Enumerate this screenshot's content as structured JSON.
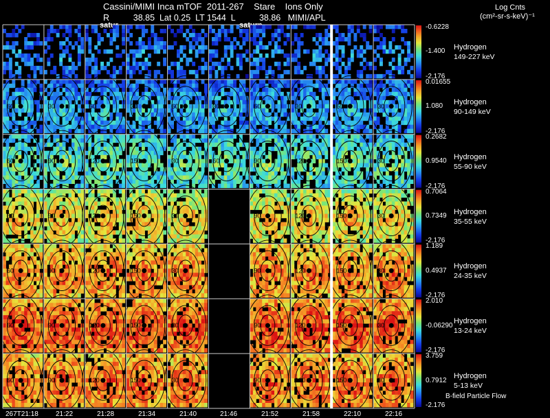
{
  "header": {
    "title": "Cassini/MIMI Inca mTOF  2011-267    Stare    Ions Only",
    "subtitle": "R          38.85  Lat 0.25  LT 1544  L          38.86   MIMI/APL",
    "units_line1": "Log Cnts",
    "units_line2": "(cm²-sr-s-keV)⁻¹",
    "saturn_labels": [
      "satur",
      "saturn"
    ]
  },
  "chart_data": {
    "type": "heatmap",
    "time_labels": [
      "267T21:18",
      "21:22",
      "21:28",
      "21:34",
      "21:40",
      "21:46",
      "21:52",
      "21:58",
      "22:10",
      "22:16"
    ],
    "panels": [
      {
        "species": "Hydrogen",
        "energy": "149-227 keV",
        "cbar_max": "-0.6228",
        "cbar_mid": "-1.400",
        "cbar_min": "-2.176",
        "level": 0.15,
        "density": 0.45,
        "contours": []
      },
      {
        "species": "Hydrogen",
        "energy": "90-149 keV",
        "cbar_max": "0.01655",
        "cbar_mid": "1.080",
        "cbar_min": "-2.176",
        "level": 0.22,
        "density": 0.8,
        "contours": [
          "60",
          "30"
        ]
      },
      {
        "species": "Hydrogen",
        "energy": "55-90 keV",
        "cbar_max": "0.2682",
        "cbar_mid": "0.9540",
        "cbar_min": "-2.176",
        "level": 0.38,
        "density": 0.78,
        "contours": [
          "60",
          "90",
          "120",
          "150",
          "30"
        ]
      },
      {
        "species": "Hydrogen",
        "energy": "35-55 keV",
        "cbar_max": "0.7064",
        "cbar_mid": "0.7349",
        "cbar_min": "-2.176",
        "level": 0.6,
        "density": 0.85,
        "contours": [
          "60",
          "90",
          "120",
          "150",
          "30"
        ]
      },
      {
        "species": "Hydrogen",
        "energy": "24-35 keV",
        "cbar_max": "1.189",
        "cbar_mid": "0.4937",
        "cbar_min": "-2.176",
        "level": 0.72,
        "density": 0.88,
        "contours": [
          "60",
          "90",
          "120",
          "150",
          "30"
        ]
      },
      {
        "species": "Hydrogen",
        "energy": "13-24 keV",
        "cbar_max": "2.010",
        "cbar_mid": "-0.06290",
        "cbar_min": "-2.176",
        "level": 0.8,
        "density": 0.9,
        "contours": [
          "60",
          "90",
          "120",
          "150",
          "30"
        ]
      },
      {
        "species": "Hydrogen",
        "energy": "5-13 keV",
        "cbar_max": "3.759",
        "cbar_mid": "0.7912",
        "cbar_min": "-2.176",
        "level": 0.75,
        "density": 0.88,
        "contours": [
          "60",
          "90",
          "120",
          "150",
          "30"
        ]
      }
    ],
    "footnote": "B-field Particle Flow"
  }
}
